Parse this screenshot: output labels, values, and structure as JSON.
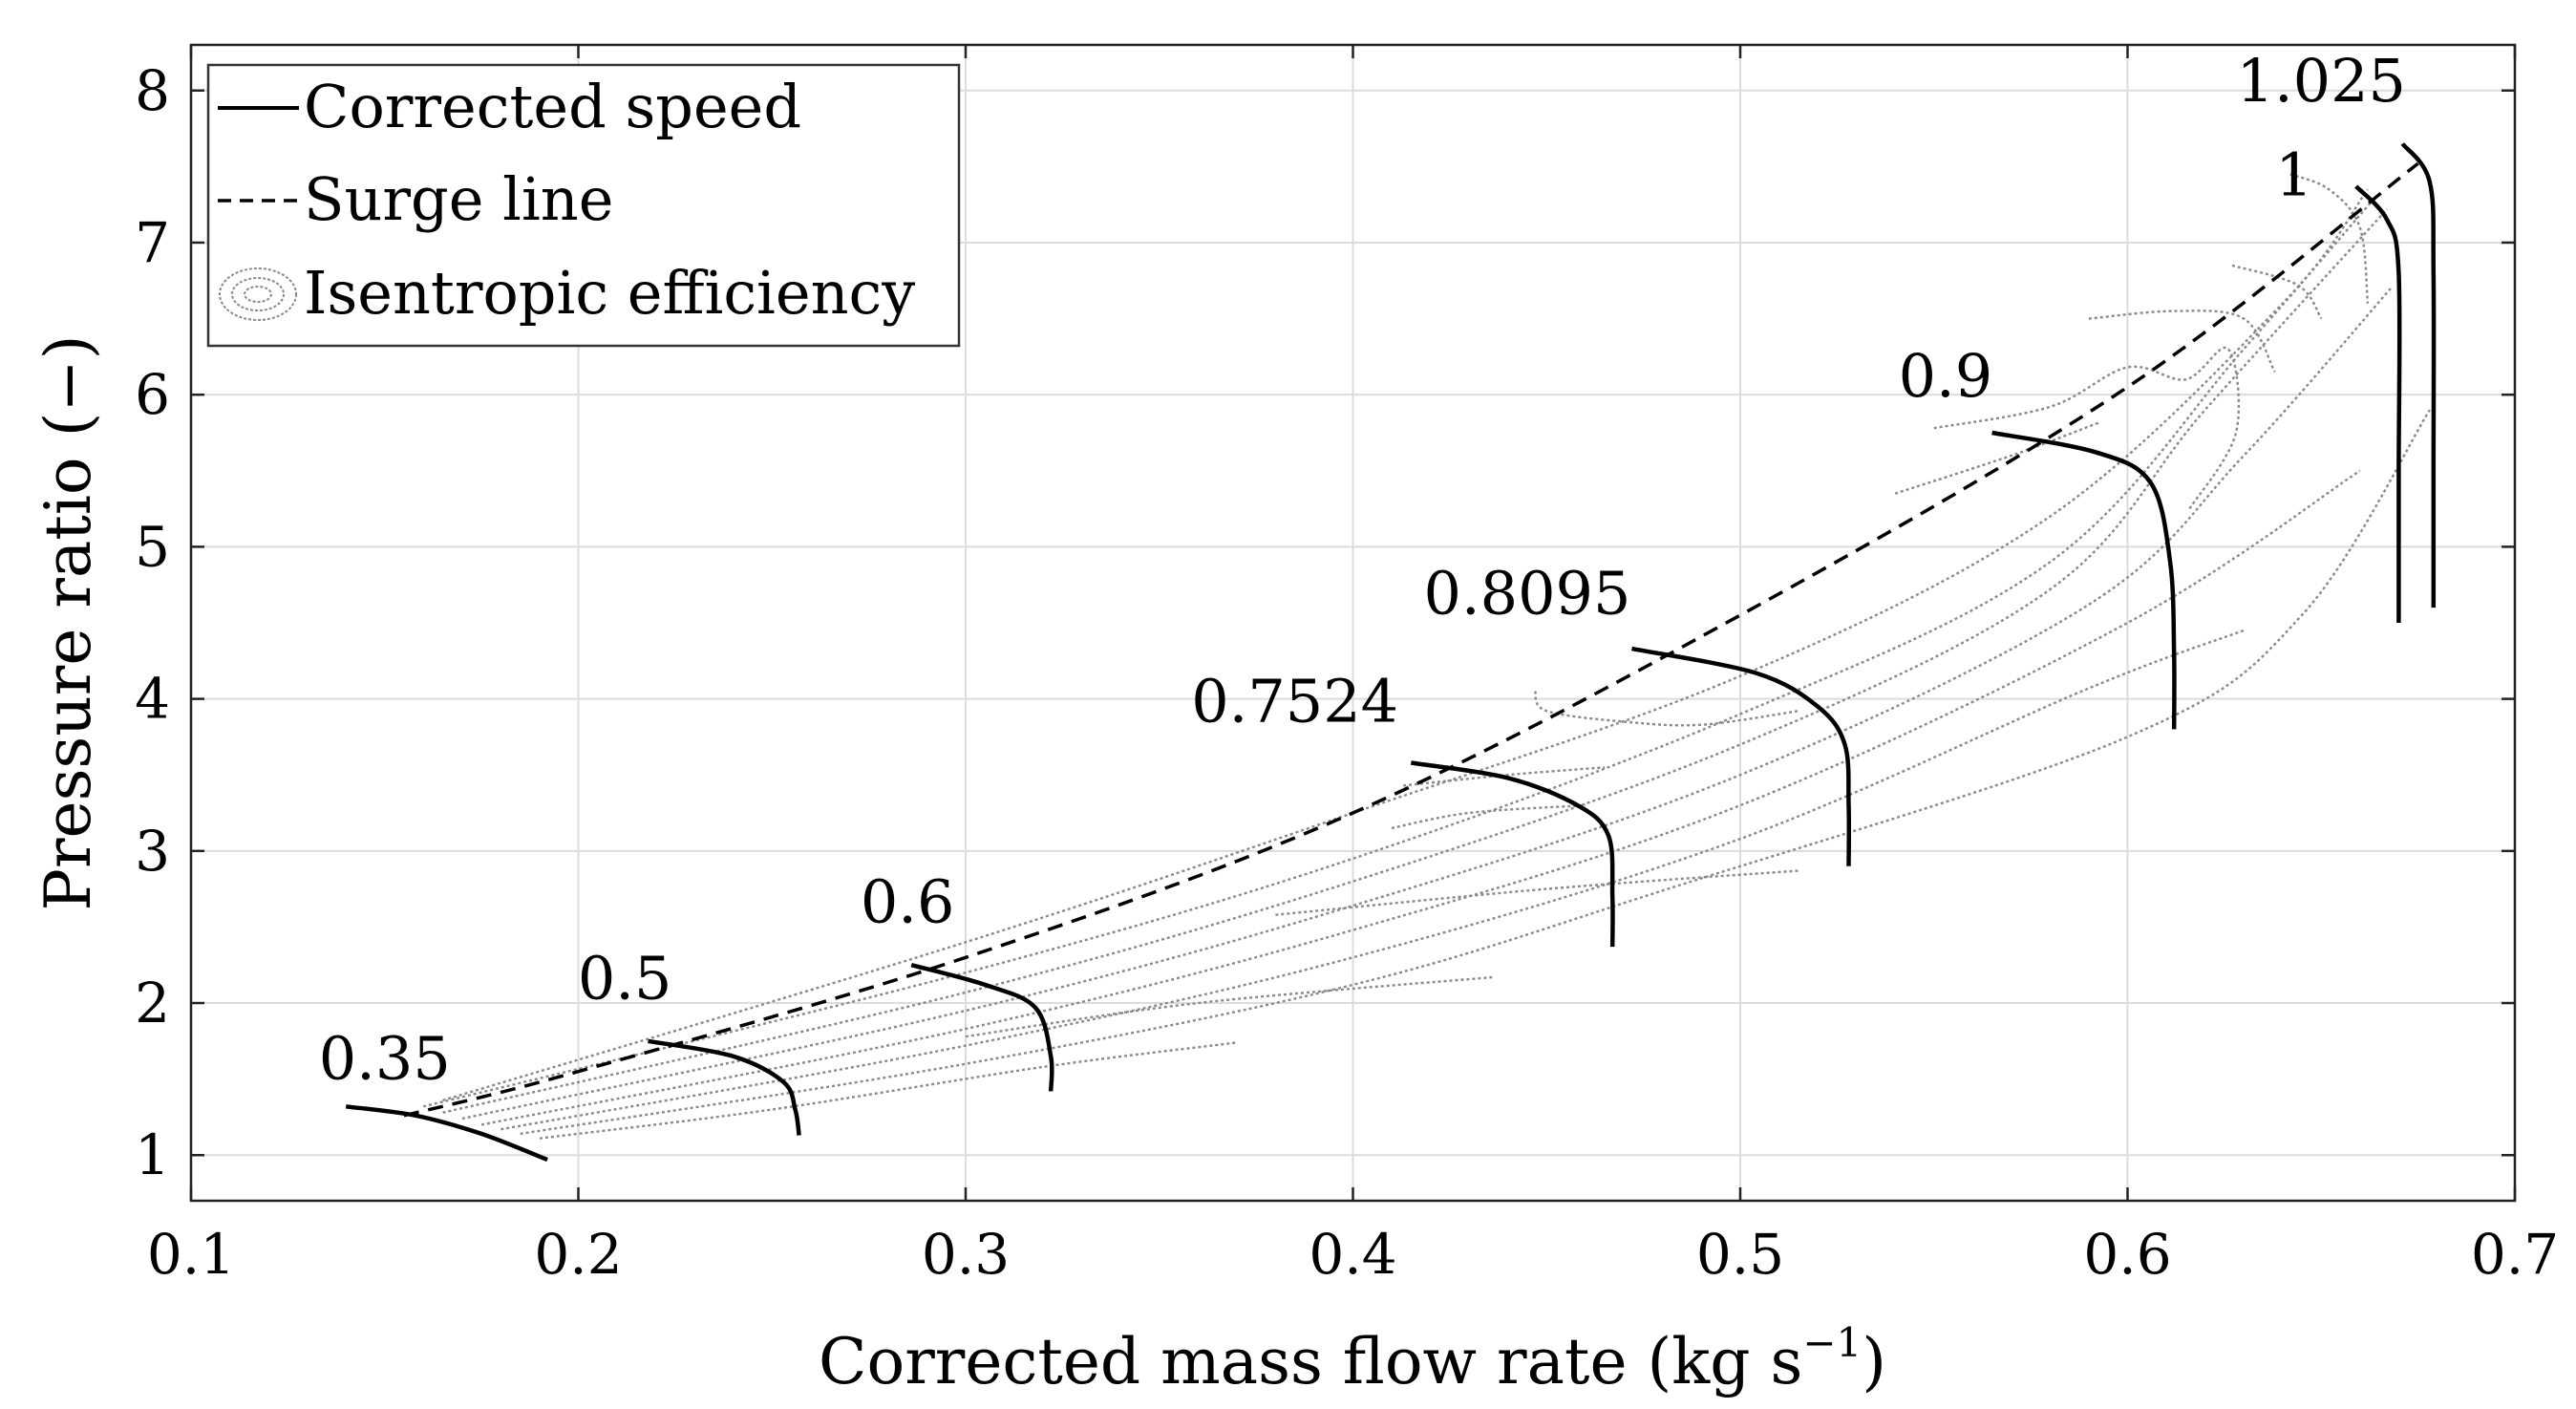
{
  "chart_data": {
    "type": "line",
    "title": "",
    "xlabel": "Corrected mass flow rate (kg s",
    "xlabel_sup": "−1",
    "xlabel_end": ")",
    "ylabel": "Pressure ratio (−)",
    "xlim": [
      0.1,
      0.7
    ],
    "ylim": [
      0.7,
      8.3
    ],
    "xticks": [
      0.1,
      0.2,
      0.3,
      0.4,
      0.5,
      0.6,
      0.7
    ],
    "xtick_labels": [
      "0.1",
      "0.2",
      "0.3",
      "0.4",
      "0.5",
      "0.6",
      "0.7"
    ],
    "yticks": [
      1,
      2,
      3,
      4,
      5,
      6,
      7,
      8
    ],
    "ytick_labels": [
      "1",
      "2",
      "3",
      "4",
      "5",
      "6",
      "7",
      "8"
    ],
    "grid": true,
    "legend": {
      "position": "top-left",
      "entries": [
        {
          "label": "Corrected speed",
          "style": "solid"
        },
        {
          "label": "Surge line",
          "style": "dashed"
        },
        {
          "label": "Isentropic efficiency",
          "style": "contour"
        }
      ]
    },
    "speed_lines": [
      {
        "name": "0.35",
        "label_at": [
          0.15,
          1.5
        ],
        "points": [
          [
            0.14,
            1.32
          ],
          [
            0.158,
            1.26
          ],
          [
            0.175,
            1.14
          ],
          [
            0.192,
            0.97
          ]
        ]
      },
      {
        "name": "0.5",
        "label_at": [
          0.212,
          2.03
        ],
        "points": [
          [
            0.218,
            1.75
          ],
          [
            0.24,
            1.65
          ],
          [
            0.253,
            1.48
          ],
          [
            0.256,
            1.3
          ],
          [
            0.257,
            1.13
          ]
        ]
      },
      {
        "name": "0.6",
        "label_at": [
          0.285,
          2.53
        ],
        "points": [
          [
            0.286,
            2.25
          ],
          [
            0.305,
            2.12
          ],
          [
            0.318,
            1.97
          ],
          [
            0.322,
            1.65
          ],
          [
            0.322,
            1.42
          ]
        ]
      },
      {
        "name": "0.7524",
        "label_at": [
          0.385,
          3.85
        ],
        "points": [
          [
            0.415,
            3.58
          ],
          [
            0.44,
            3.48
          ],
          [
            0.458,
            3.3
          ],
          [
            0.466,
            3.1
          ],
          [
            0.467,
            2.7
          ],
          [
            0.467,
            2.37
          ]
        ]
      },
      {
        "name": "0.8095",
        "label_at": [
          0.445,
          4.56
        ],
        "points": [
          [
            0.472,
            4.33
          ],
          [
            0.504,
            4.17
          ],
          [
            0.52,
            3.95
          ],
          [
            0.527,
            3.7
          ],
          [
            0.528,
            3.3
          ],
          [
            0.528,
            2.9
          ]
        ]
      },
      {
        "name": "0.9",
        "label_at": [
          0.553,
          5.99
        ],
        "points": [
          [
            0.565,
            5.75
          ],
          [
            0.592,
            5.62
          ],
          [
            0.606,
            5.42
          ],
          [
            0.611,
            4.9
          ],
          [
            0.612,
            4.3
          ],
          [
            0.612,
            3.8
          ]
        ]
      },
      {
        "name": "1",
        "label_at": [
          0.643,
          7.31
        ],
        "points": [
          [
            0.659,
            7.37
          ],
          [
            0.667,
            7.15
          ],
          [
            0.67,
            6.8
          ],
          [
            0.67,
            5.5
          ],
          [
            0.67,
            4.5
          ]
        ]
      },
      {
        "name": "1.025",
        "label_at": [
          0.65,
          7.93
        ],
        "points": [
          [
            0.671,
            7.65
          ],
          [
            0.678,
            7.4
          ],
          [
            0.679,
            6.8
          ],
          [
            0.679,
            5.5
          ],
          [
            0.679,
            4.6
          ]
        ]
      }
    ],
    "surge_line": [
      [
        0.155,
        1.26
      ],
      [
        0.2,
        1.55
      ],
      [
        0.3,
        2.3
      ],
      [
        0.4,
        3.25
      ],
      [
        0.5,
        4.55
      ],
      [
        0.6,
        6.05
      ],
      [
        0.675,
        7.52
      ]
    ],
    "efficiency_contours": [
      [
        [
          0.165,
          1.36
        ],
        [
          0.3,
          2.4
        ],
        [
          0.4,
          3.25
        ],
        [
          0.5,
          4.15
        ],
        [
          0.58,
          5.2
        ],
        [
          0.64,
          6.6
        ],
        [
          0.662,
          7.35
        ]
      ],
      [
        [
          0.16,
          1.32
        ],
        [
          0.3,
          2.2
        ],
        [
          0.4,
          2.95
        ],
        [
          0.5,
          3.9
        ],
        [
          0.58,
          4.9
        ],
        [
          0.63,
          6.3
        ],
        [
          0.664,
          7.3
        ]
      ],
      [
        [
          0.165,
          1.28
        ],
        [
          0.3,
          2.07
        ],
        [
          0.4,
          2.8
        ],
        [
          0.5,
          3.7
        ],
        [
          0.58,
          4.72
        ],
        [
          0.62,
          5.9
        ],
        [
          0.667,
          7.22
        ]
      ],
      [
        [
          0.17,
          1.24
        ],
        [
          0.3,
          1.95
        ],
        [
          0.4,
          2.64
        ],
        [
          0.5,
          3.5
        ],
        [
          0.59,
          4.62
        ],
        [
          0.63,
          5.6
        ],
        [
          0.668,
          6.7
        ]
      ],
      [
        [
          0.175,
          1.2
        ],
        [
          0.3,
          1.83
        ],
        [
          0.4,
          2.48
        ],
        [
          0.5,
          3.3
        ],
        [
          0.6,
          4.5
        ],
        [
          0.66,
          5.5
        ]
      ],
      [
        [
          0.18,
          1.17
        ],
        [
          0.3,
          1.72
        ],
        [
          0.4,
          2.3
        ],
        [
          0.5,
          3.08
        ],
        [
          0.59,
          4.07
        ],
        [
          0.63,
          4.45
        ]
      ],
      [
        [
          0.185,
          1.14
        ],
        [
          0.3,
          1.6
        ],
        [
          0.4,
          2.12
        ],
        [
          0.48,
          2.74
        ],
        [
          0.6,
          3.75
        ],
        [
          0.645,
          4.55
        ],
        [
          0.678,
          5.9
        ]
      ],
      [
        [
          0.19,
          1.11
        ],
        [
          0.25,
          1.3
        ],
        [
          0.32,
          1.58
        ],
        [
          0.37,
          1.74
        ]
      ],
      [
        [
          0.3,
          1.78
        ],
        [
          0.36,
          2.0
        ],
        [
          0.436,
          2.17
        ]
      ],
      [
        [
          0.38,
          2.58
        ],
        [
          0.45,
          2.75
        ],
        [
          0.515,
          2.87
        ]
      ],
      [
        [
          0.54,
          5.35
        ],
        [
          0.57,
          5.6
        ],
        [
          0.593,
          5.82
        ]
      ],
      [
        [
          0.55,
          5.78
        ],
        [
          0.58,
          5.92
        ],
        [
          0.6,
          6.18
        ],
        [
          0.615,
          6.1
        ],
        [
          0.626,
          6.3
        ],
        [
          0.628,
          5.75
        ],
        [
          0.616,
          5.25
        ]
      ],
      [
        [
          0.59,
          6.5
        ],
        [
          0.612,
          6.55
        ],
        [
          0.63,
          6.5
        ],
        [
          0.638,
          6.15
        ]
      ],
      [
        [
          0.627,
          6.85
        ],
        [
          0.644,
          6.72
        ],
        [
          0.65,
          6.5
        ]
      ],
      [
        [
          0.41,
          3.15
        ],
        [
          0.43,
          3.25
        ],
        [
          0.46,
          3.3
        ]
      ],
      [
        [
          0.413,
          3.43
        ],
        [
          0.44,
          3.5
        ],
        [
          0.465,
          3.55
        ]
      ],
      [
        [
          0.447,
          4.05
        ],
        [
          0.45,
          3.92
        ],
        [
          0.47,
          3.85
        ],
        [
          0.49,
          3.83
        ],
        [
          0.515,
          3.92
        ]
      ],
      [
        [
          0.642,
          7.45
        ],
        [
          0.652,
          7.35
        ],
        [
          0.66,
          7.1
        ],
        [
          0.662,
          6.6
        ]
      ]
    ]
  }
}
